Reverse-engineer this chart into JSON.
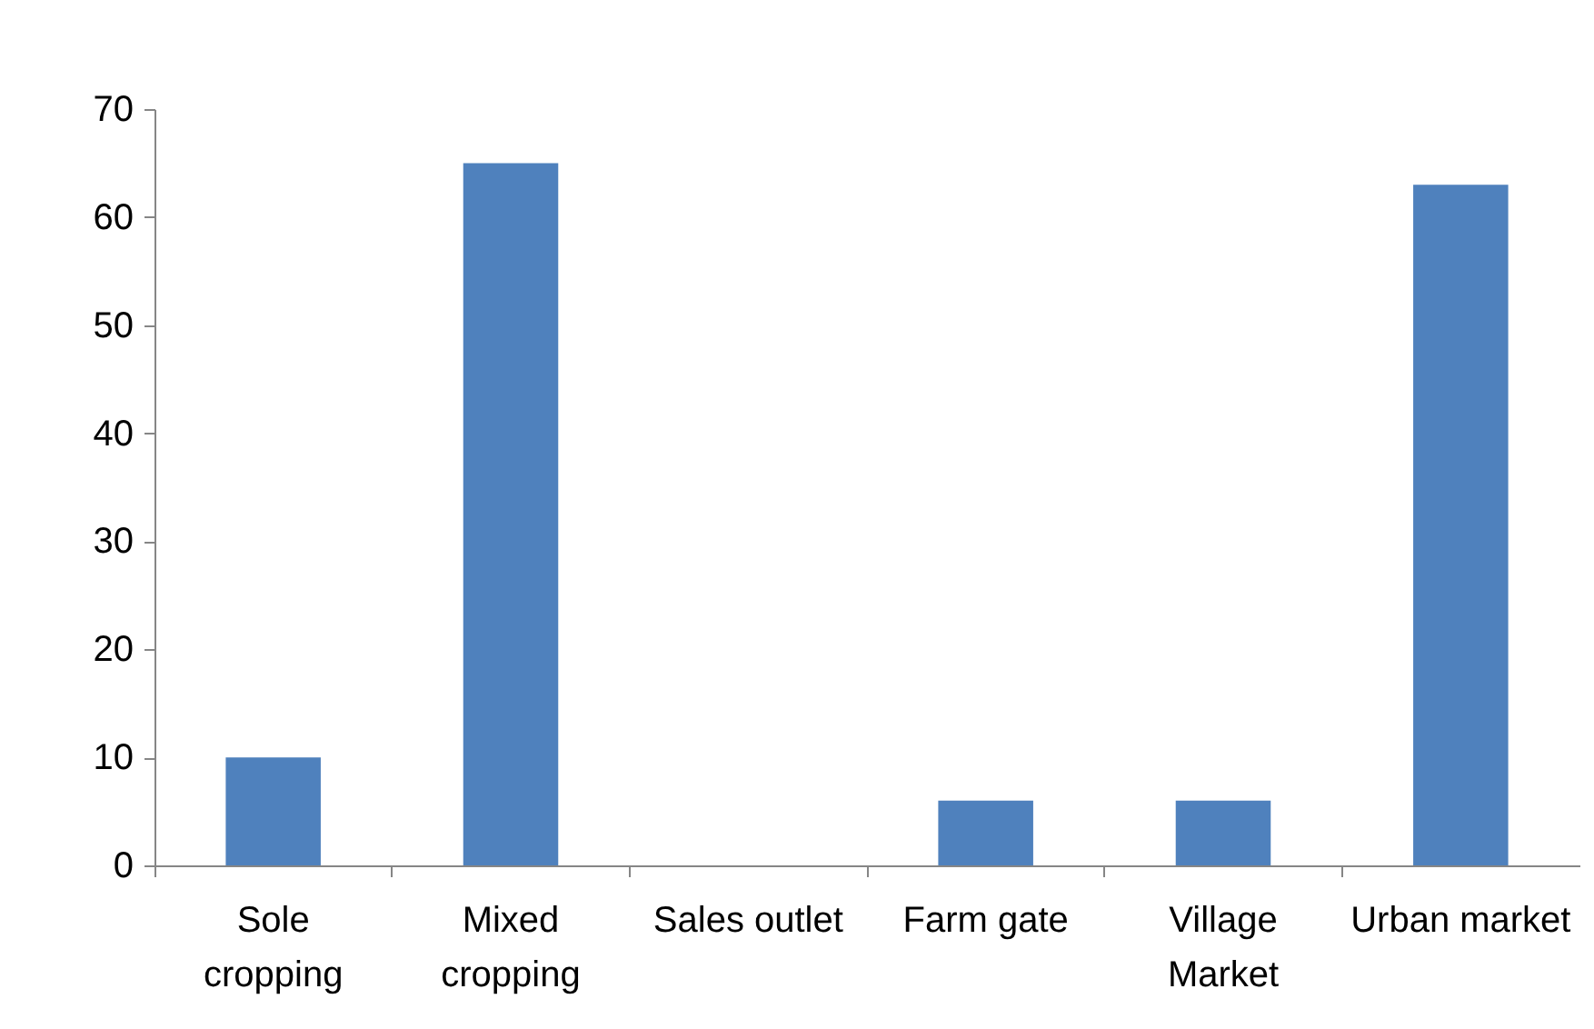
{
  "chart_data": {
    "type": "bar",
    "categories": [
      "Sole cropping",
      "Mixed cropping",
      "Sales outlet",
      "Farm gate",
      "Village Market",
      "Urban market"
    ],
    "values": [
      10,
      65,
      0,
      6,
      6,
      63
    ],
    "color": "#4f81bd",
    "ylim": [
      0,
      70
    ],
    "yticks": [
      0,
      10,
      20,
      30,
      40,
      50,
      60,
      70
    ],
    "grid": false
  }
}
